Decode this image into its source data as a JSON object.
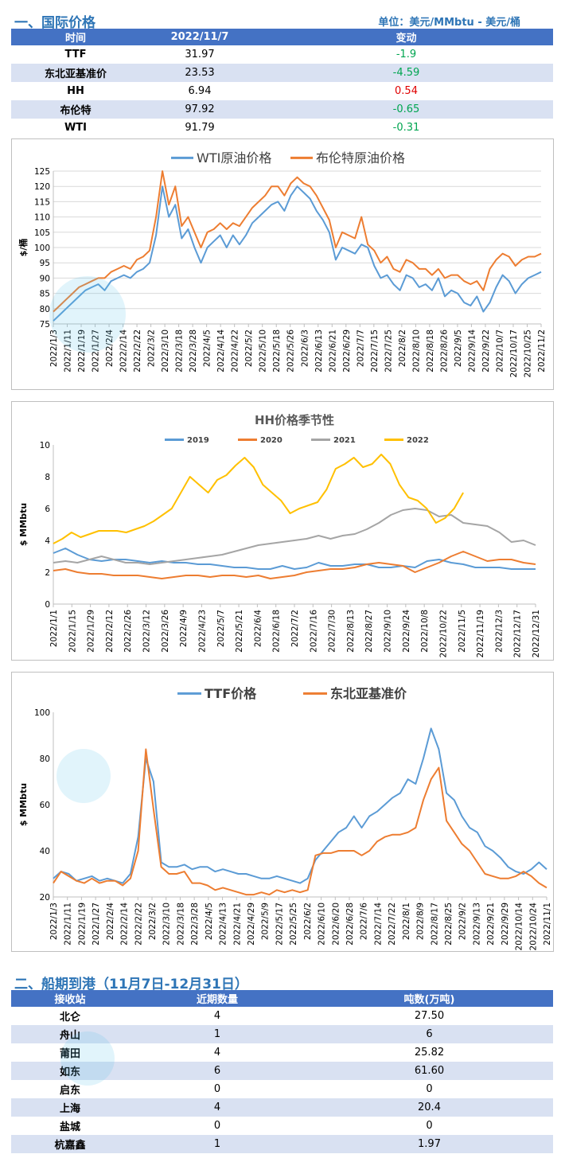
{
  "section1": {
    "title": "一、国际价格",
    "unit": "单位：美元/MMbtu - 美元/桶",
    "headers": [
      "时间",
      "2022/11/7",
      "变动"
    ],
    "rows": [
      {
        "name": "TTF",
        "value": "31.97",
        "change": "-1.9",
        "dir": "neg"
      },
      {
        "name": "东北亚基准价",
        "value": "23.53",
        "change": "-4.59",
        "dir": "neg"
      },
      {
        "name": "HH",
        "value": "6.94",
        "change": "0.54",
        "dir": "pos"
      },
      {
        "name": "布伦特",
        "value": "97.92",
        "change": "-0.65",
        "dir": "neg"
      },
      {
        "name": "WTI",
        "value": "91.79",
        "change": "-0.31",
        "dir": "neg"
      }
    ]
  },
  "colors": {
    "blue": "#5b9bd5",
    "orange": "#ed7d31",
    "gray": "#a5a5a5",
    "yellow": "#ffc000",
    "header": "#4472c4",
    "title": "#2e75b6"
  },
  "chart_data": [
    {
      "type": "line",
      "title": "",
      "legend": [
        "WTI原油价格",
        "布伦特原油价格"
      ],
      "ylabel": "$/桶",
      "ylim": [
        75,
        125
      ],
      "yticks": [
        75,
        80,
        85,
        90,
        95,
        100,
        105,
        110,
        115,
        120,
        125
      ],
      "xticks": [
        "2022/1/3",
        "2022/1/11",
        "2022/1/19",
        "2022/1/27",
        "2022/2/4",
        "2022/2/14",
        "2022/2/22",
        "2022/3/2",
        "2022/3/10",
        "2022/3/18",
        "2022/3/28",
        "2022/4/5",
        "2022/4/14",
        "2022/4/22",
        "2022/5/2",
        "2022/5/10",
        "2022/5/18",
        "2022/5/26",
        "2022/6/3",
        "2022/6/13",
        "2022/6/21",
        "2022/6/29",
        "2022/7/7",
        "2022/7/15",
        "2022/7/25",
        "2022/8/2",
        "2022/8/10",
        "2022/8/18",
        "2022/8/26",
        "2022/9/5",
        "2022/9/14",
        "2022/9/22",
        "2022/10/7",
        "2022/10/17",
        "2022/10/25",
        "2022/11/2"
      ],
      "series": [
        {
          "name": "WTI原油价格",
          "color": "#5b9bd5",
          "values": [
            76,
            78,
            80,
            82,
            84,
            86,
            87,
            88,
            86,
            89,
            90,
            91,
            90,
            92,
            93,
            95,
            104,
            120,
            110,
            114,
            103,
            106,
            100,
            95,
            100,
            102,
            104,
            100,
            104,
            101,
            104,
            108,
            110,
            112,
            114,
            115,
            112,
            117,
            120,
            118,
            116,
            112,
            109,
            105,
            96,
            100,
            99,
            98,
            101,
            100,
            94,
            90,
            91,
            88,
            86,
            91,
            90,
            87,
            88,
            86,
            90,
            84,
            86,
            85,
            82,
            81,
            84,
            79,
            82,
            87,
            91,
            89,
            85,
            88,
            90,
            91,
            92
          ]
        },
        {
          "name": "布伦特原油价格",
          "color": "#ed7d31",
          "values": [
            79,
            81,
            83,
            85,
            87,
            88,
            89,
            90,
            90,
            92,
            93,
            94,
            93,
            96,
            97,
            99,
            110,
            125,
            114,
            120,
            107,
            110,
            105,
            100,
            105,
            106,
            108,
            106,
            108,
            107,
            110,
            113,
            115,
            117,
            120,
            120,
            117,
            121,
            123,
            121,
            120,
            117,
            113,
            109,
            100,
            105,
            104,
            103,
            110,
            101,
            99,
            95,
            97,
            93,
            92,
            96,
            95,
            93,
            93,
            91,
            93,
            90,
            91,
            91,
            89,
            88,
            89,
            86,
            93,
            96,
            98,
            97,
            94,
            96,
            97,
            97,
            98
          ]
        }
      ]
    },
    {
      "type": "line",
      "title": "HH价格季节性",
      "legend": [
        "2019",
        "2020",
        "2021",
        "2022"
      ],
      "ylabel": "$ MMbtu",
      "ylim": [
        0,
        10
      ],
      "yticks": [
        0,
        2,
        4,
        6,
        8,
        10
      ],
      "xticks": [
        "2022/1/1",
        "2022/1/15",
        "2022/1/29",
        "2022/2/12",
        "2022/2/26",
        "2022/3/12",
        "2022/3/26",
        "2022/4/9",
        "2022/4/23",
        "2022/5/7",
        "2022/5/21",
        "2022/6/4",
        "2022/6/18",
        "2022/7/2",
        "2022/7/16",
        "2022/7/30",
        "2022/8/13",
        "2022/8/27",
        "2022/9/10",
        "2022/9/24",
        "2022/10/8",
        "2022/10/22",
        "2022/11/5",
        "2022/11/19",
        "2022/12/3",
        "2022/12/17",
        "2022/12/31"
      ],
      "series": [
        {
          "name": "2019",
          "color": "#5b9bd5",
          "values": [
            3.2,
            3.5,
            3.1,
            2.8,
            2.7,
            2.8,
            2.8,
            2.7,
            2.6,
            2.7,
            2.6,
            2.6,
            2.5,
            2.5,
            2.4,
            2.3,
            2.3,
            2.2,
            2.2,
            2.4,
            2.2,
            2.3,
            2.6,
            2.4,
            2.4,
            2.5,
            2.5,
            2.3,
            2.3,
            2.4,
            2.3,
            2.7,
            2.8,
            2.6,
            2.5,
            2.3,
            2.3,
            2.3,
            2.2,
            2.2,
            2.2
          ]
        },
        {
          "name": "2020",
          "color": "#ed7d31",
          "values": [
            2.1,
            2.2,
            2.0,
            1.9,
            1.9,
            1.8,
            1.8,
            1.8,
            1.7,
            1.6,
            1.7,
            1.8,
            1.8,
            1.7,
            1.8,
            1.8,
            1.7,
            1.8,
            1.6,
            1.7,
            1.8,
            2.0,
            2.1,
            2.2,
            2.2,
            2.3,
            2.5,
            2.6,
            2.5,
            2.4,
            2.0,
            2.3,
            2.6,
            3.0,
            3.3,
            3.0,
            2.7,
            2.8,
            2.8,
            2.6,
            2.5
          ]
        },
        {
          "name": "2021",
          "color": "#a5a5a5",
          "values": [
            2.6,
            2.7,
            2.6,
            2.8,
            3.0,
            2.8,
            2.6,
            2.6,
            2.5,
            2.6,
            2.7,
            2.8,
            2.9,
            3.0,
            3.1,
            3.3,
            3.5,
            3.7,
            3.8,
            3.9,
            4.0,
            4.1,
            4.3,
            4.1,
            4.3,
            4.4,
            4.7,
            5.1,
            5.6,
            5.9,
            6.0,
            5.9,
            5.5,
            5.6,
            5.1,
            5.0,
            4.9,
            4.5,
            3.9,
            4.0,
            3.7
          ]
        },
        {
          "name": "2022",
          "color": "#ffc000",
          "values": [
            3.8,
            4.1,
            4.5,
            4.2,
            4.4,
            4.6,
            4.6,
            4.6,
            4.5,
            4.7,
            4.9,
            5.2,
            5.6,
            6.0,
            7.0,
            8.0,
            7.5,
            7.0,
            7.8,
            8.1,
            8.7,
            9.2,
            8.6,
            7.5,
            7.0,
            6.5,
            5.7,
            6.0,
            6.2,
            6.4,
            7.2,
            8.5,
            8.8,
            9.2,
            8.6,
            8.8,
            9.4,
            8.8,
            7.5,
            6.7,
            6.5,
            6.0,
            5.1,
            5.4,
            6.0,
            7.0
          ]
        }
      ]
    },
    {
      "type": "line",
      "title": "",
      "legend": [
        "TTF价格",
        "东北亚基准价"
      ],
      "ylabel": "$ MMbtu",
      "ylim": [
        20,
        100
      ],
      "yticks": [
        20,
        40,
        60,
        80,
        100
      ],
      "xticks": [
        "2022/1/3",
        "2022/1/11",
        "2022/1/19",
        "2022/1/27",
        "2022/2/4",
        "2022/2/14",
        "2022/2/22",
        "2022/3/2",
        "2022/3/10",
        "2022/3/18",
        "2022/3/28",
        "2022/4/5",
        "2022/4/13",
        "2022/4/21",
        "2022/4/29",
        "2022/5/9",
        "2022/5/17",
        "2022/5/25",
        "2022/6/2",
        "2022/6/10",
        "2022/6/20",
        "2022/6/28",
        "2022/7/6",
        "2022/7/14",
        "2022/7/22",
        "2022/8/1",
        "2022/8/9",
        "2022/8/17",
        "2022/8/25",
        "2022/9/2",
        "2022/9/13",
        "2022/9/21",
        "2022/9/29",
        "2022/10/14",
        "2022/10/24",
        "2022/11/1"
      ],
      "series": [
        {
          "name": "TTF价格",
          "color": "#5b9bd5",
          "values": [
            28,
            31,
            30,
            27,
            28,
            29,
            27,
            28,
            27,
            26,
            30,
            46,
            80,
            70,
            35,
            33,
            33,
            34,
            32,
            33,
            33,
            31,
            32,
            31,
            30,
            30,
            29,
            28,
            28,
            29,
            28,
            27,
            26,
            28,
            36,
            40,
            44,
            48,
            50,
            55,
            50,
            55,
            57,
            60,
            63,
            65,
            71,
            69,
            80,
            93,
            84,
            65,
            62,
            55,
            50,
            48,
            42,
            40,
            37,
            33,
            31,
            30,
            32,
            35,
            32
          ]
        },
        {
          "name": "东北亚基准价",
          "color": "#ed7d31",
          "values": [
            26,
            31,
            29,
            27,
            26,
            28,
            26,
            27,
            27,
            25,
            28,
            40,
            84,
            58,
            33,
            30,
            30,
            31,
            26,
            26,
            25,
            23,
            24,
            23,
            22,
            21,
            21,
            22,
            21,
            23,
            22,
            23,
            22,
            23,
            38,
            39,
            39,
            40,
            40,
            40,
            38,
            40,
            44,
            46,
            47,
            47,
            48,
            50,
            62,
            71,
            76,
            53,
            48,
            43,
            40,
            35,
            30,
            29,
            28,
            28,
            29,
            31,
            29,
            26,
            24
          ]
        }
      ]
    }
  ],
  "section2": {
    "title": "二、船期到港（11月7日-12月31日）",
    "headers": [
      "接收站",
      "近期数量",
      "吨数(万吨)"
    ],
    "rows": [
      {
        "name": "北仑",
        "count": "4",
        "tons": "27.50"
      },
      {
        "name": "舟山",
        "count": "1",
        "tons": "6"
      },
      {
        "name": "莆田",
        "count": "4",
        "tons": "25.82"
      },
      {
        "name": "如东",
        "count": "6",
        "tons": "61.60"
      },
      {
        "name": "启东",
        "count": "0",
        "tons": "0"
      },
      {
        "name": "上海",
        "count": "4",
        "tons": "20.4"
      },
      {
        "name": "盐城",
        "count": "0",
        "tons": "0"
      },
      {
        "name": "杭嘉鑫",
        "count": "1",
        "tons": "1.97"
      }
    ]
  }
}
